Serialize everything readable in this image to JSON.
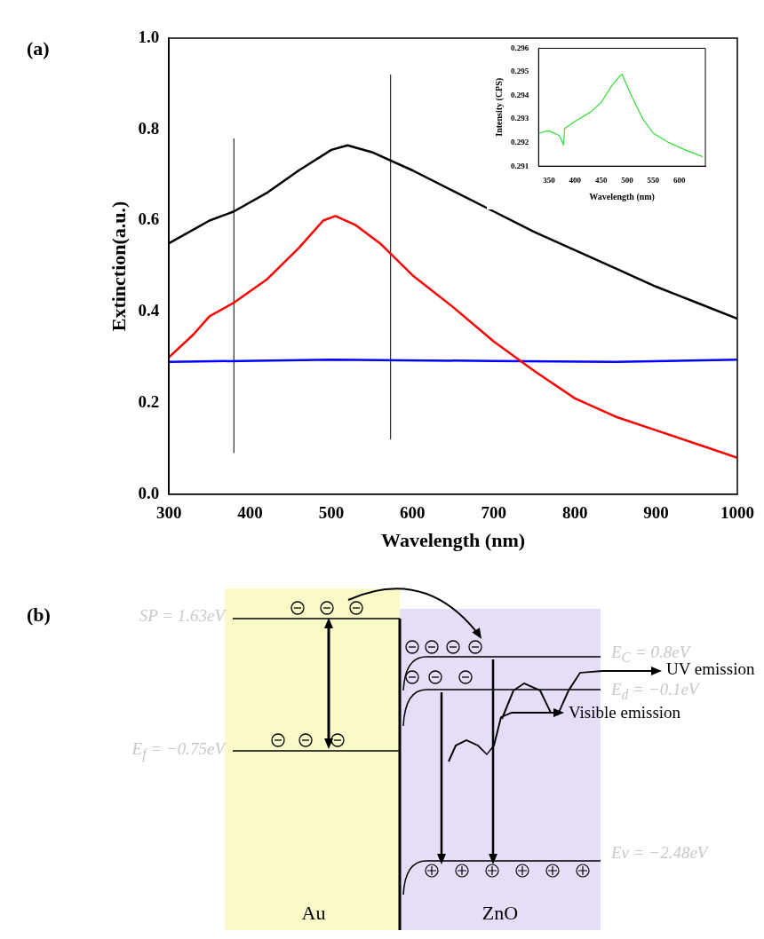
{
  "chart_data": [
    {
      "type": "line",
      "title": "(a)",
      "xlabel": "Wavelength (nm)",
      "ylabel": "Extinction(a.u.)",
      "xlim": [
        300,
        1000
      ],
      "xticks": [
        300,
        400,
        500,
        600,
        700,
        800,
        900,
        1000
      ],
      "ylim": [
        0,
        1
      ],
      "yticks": [
        {
          "value": 0,
          "label": "0.0"
        },
        {
          "value": 0.2,
          "label": "0.2"
        },
        {
          "value": 0.4,
          "label": "0.4"
        },
        {
          "value": 0.6,
          "label": "0.6"
        },
        {
          "value": 0.8,
          "label": "0.8"
        },
        {
          "value": 1,
          "label": "1.0"
        }
      ],
      "marker": "none",
      "series": [
        {
          "color": "#000000",
          "x": [
            300,
            350,
            380,
            420,
            460,
            500,
            520,
            550,
            600,
            650,
            700,
            750,
            800,
            850,
            900,
            950,
            1000
          ],
          "values": [
            0.55,
            0.6,
            0.62,
            0.66,
            0.71,
            0.755,
            0.765,
            0.75,
            0.71,
            0.665,
            0.62,
            0.575,
            0.535,
            0.495,
            0.455,
            0.42,
            0.385
          ]
        },
        {
          "color": "#ff0000",
          "x": [
            300,
            330,
            350,
            380,
            420,
            460,
            490,
            505,
            530,
            560,
            600,
            650,
            700,
            750,
            800,
            850,
            900,
            950,
            1000
          ],
          "values": [
            0.3,
            0.35,
            0.39,
            0.42,
            0.47,
            0.54,
            0.6,
            0.61,
            0.59,
            0.55,
            0.48,
            0.41,
            0.335,
            0.27,
            0.21,
            0.17,
            0.14,
            0.11,
            0.08
          ]
        },
        {
          "color": "#0000ff",
          "x": [
            300,
            500,
            700,
            850,
            1000
          ],
          "values": [
            0.29,
            0.295,
            0.292,
            0.29,
            0.295
          ]
        },
        {
          "color": "#000000",
          "x": [
            380,
            380
          ],
          "values": [
            0.09,
            0.78
          ]
        },
        {
          "color": "#000000",
          "x": [
            573,
            573
          ],
          "values": [
            0.12,
            0.92
          ]
        }
      ]
    },
    {
      "type": "line",
      "xlabel": "Wavelength (nm)",
      "ylabel": "Intensity (CPS)",
      "xlim": [
        330,
        650
      ],
      "xticks": [
        350,
        400,
        450,
        500,
        550,
        600
      ],
      "ylim": [
        0.291,
        0.296
      ],
      "yticks": [
        0.291,
        0.292,
        0.293,
        0.294,
        0.295,
        0.296
      ],
      "marker": "none",
      "series": [
        {
          "color": "#33dd33",
          "x": [
            330,
            350,
            370,
            378,
            380,
            400,
            430,
            450,
            470,
            485,
            490,
            500,
            510,
            530,
            550,
            580,
            610,
            645
          ],
          "values": [
            0.2924,
            0.2925,
            0.2923,
            0.2919,
            0.2926,
            0.2929,
            0.2933,
            0.2937,
            0.2944,
            0.2948,
            0.2949,
            0.2944,
            0.2939,
            0.293,
            0.2924,
            0.292,
            0.2917,
            0.2914
          ]
        }
      ]
    },
    {
      "type": "other",
      "title": "(b)",
      "annotations": [
        "SP = 1.63eV",
        "E$_{f}$ = −0.75eV",
        "E$_{C}$ = 0.8eV",
        "E$_{d}$ = −0.1eV",
        "Ev = −2.48eV",
        "UV emission",
        "Visible emission",
        "Au",
        "ZnO"
      ]
    }
  ]
}
